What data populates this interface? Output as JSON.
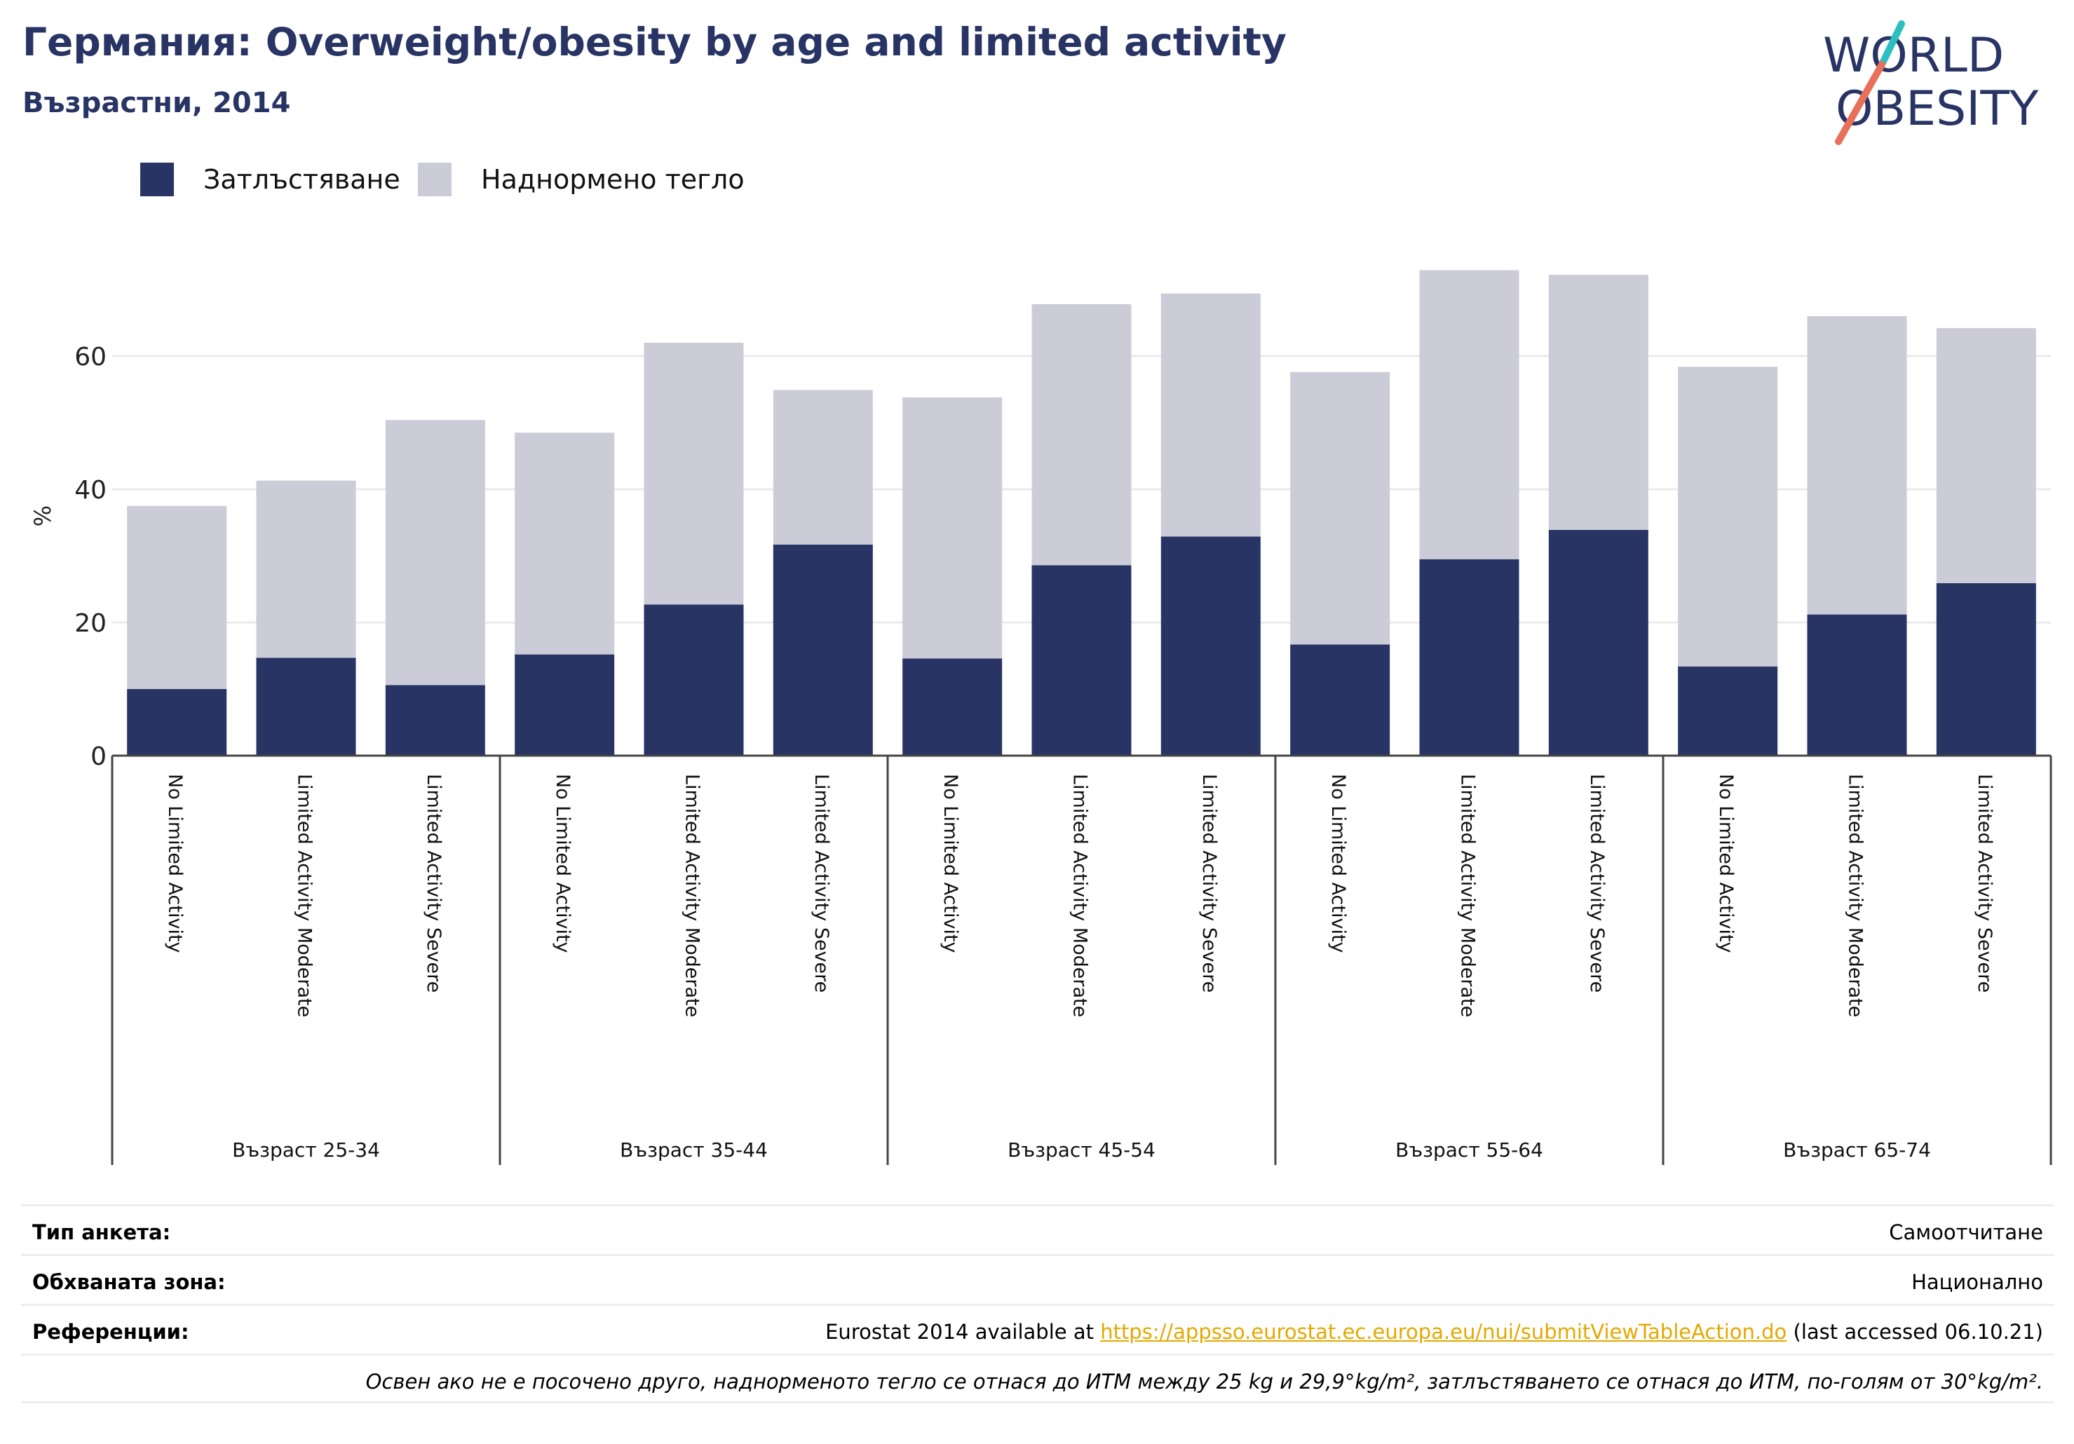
{
  "header": {
    "title": "Германия: Overweight/obesity by age and limited activity",
    "subtitle": "Възрастни, 2014"
  },
  "logo": {
    "line1": "WORLD",
    "line2": "OBESITY"
  },
  "colors": {
    "obesity": "#283464",
    "overweight": "#cbccd8",
    "accent_teal": "#2bbfbf",
    "accent_coral": "#e8705a",
    "link": "#e5a800"
  },
  "chart_data": {
    "type": "bar",
    "stacked": true,
    "ylabel": "%",
    "ylim": [
      0,
      75
    ],
    "yticks": [
      0,
      20,
      40,
      60
    ],
    "grid": true,
    "legend_position": "top-left",
    "groups": [
      "Възраст 25-34",
      "Възраст 35-44",
      "Възраст 45-54",
      "Възраст 55-64",
      "Възраст 65-74"
    ],
    "categories": [
      "No Limited Activity",
      "Limited Activity Moderate",
      "Limited Activity Severe",
      "No Limited Activity",
      "Limited Activity Moderate",
      "Limited Activity Severe",
      "No Limited Activity",
      "Limited Activity Moderate",
      "Limited Activity Severe",
      "No Limited Activity",
      "Limited Activity Moderate",
      "Limited Activity Severe",
      "No Limited Activity",
      "Limited Activity Moderate",
      "Limited Activity Severe"
    ],
    "series": [
      {
        "name": "Затлъстяване",
        "values": [
          10.0,
          14.7,
          10.6,
          15.2,
          22.7,
          31.7,
          14.6,
          28.6,
          32.9,
          16.7,
          29.5,
          33.9,
          13.4,
          21.2,
          25.9
        ]
      },
      {
        "name": "Наднормено тегло",
        "values": [
          27.5,
          26.6,
          39.8,
          33.3,
          39.3,
          23.2,
          39.2,
          39.2,
          36.5,
          40.9,
          43.4,
          38.3,
          45.0,
          44.8,
          38.3
        ]
      }
    ]
  },
  "footer": {
    "rows": [
      {
        "label": "Тип анкета:",
        "value": "Самоотчитане"
      },
      {
        "label": "Обхваната зона:",
        "value": "Национално"
      },
      {
        "label": "Референции:",
        "value_prefix": "Eurostat 2014 available at ",
        "link": "https://appsso.eurostat.ec.europa.eu/nui/submitViewTableAction.do",
        "value_suffix": " (last accessed 06.10.21)"
      }
    ],
    "note": "Освен ако не е посочено друго, наднорменото тегло се отнася до ИТМ между 25 kg и 29,9°kg/m², затлъстяването се отнася до ИТМ, по-голям от 30°kg/m²."
  }
}
